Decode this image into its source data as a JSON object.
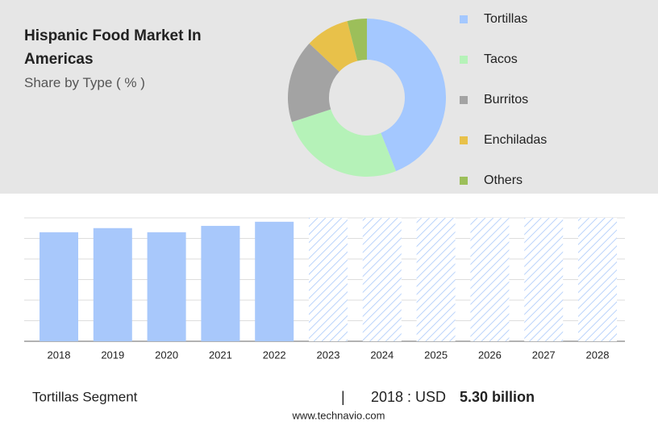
{
  "chart_data": [
    {
      "type": "pie",
      "title": "Hispanic Food Market In Americas",
      "subtitle": "Share by Type ( % )",
      "categories": [
        "Tortillas",
        "Tacos",
        "Burritos",
        "Enchiladas",
        "Others"
      ],
      "values": [
        44,
        26,
        17,
        9,
        4
      ],
      "colors": [
        "#a4c8ff",
        "#b5f2b8",
        "#a3a3a3",
        "#e8c14a",
        "#9cbf5a"
      ]
    },
    {
      "type": "bar",
      "categories": [
        "2018",
        "2019",
        "2020",
        "2021",
        "2022",
        "2023",
        "2024",
        "2025",
        "2026",
        "2027",
        "2028"
      ],
      "values": [
        5.3,
        5.5,
        5.3,
        5.61,
        5.81,
        null,
        null,
        null,
        null,
        null,
        null
      ],
      "color": "#a8c8fb",
      "ylim": [
        0,
        6
      ],
      "yticks": [
        0,
        1,
        2,
        3,
        4,
        5,
        6
      ],
      "grid": true
    }
  ],
  "footer": {
    "segment": "Tortillas Segment",
    "year_label": "2018 : USD",
    "value": "5.30 billion",
    "source": "www.technavio.com"
  }
}
